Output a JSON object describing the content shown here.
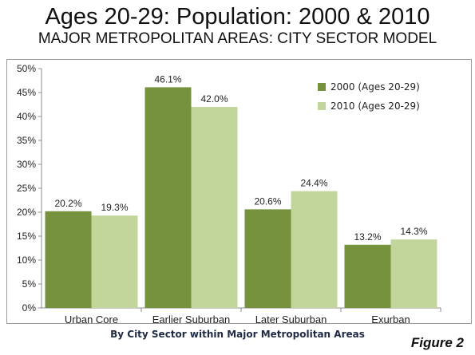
{
  "title": "Ages 20-29: Population: 2000 & 2010",
  "subtitle": "MAJOR METROPOLITAN AREAS: CITY SECTOR MODEL",
  "figure_label": "Figure 2",
  "colors": {
    "series_2000": "#76923c",
    "series_2010": "#c2d69b"
  },
  "chart_data": {
    "type": "bar",
    "xlabel": "By City Sector within Major Metropolitan Areas",
    "ylabel": "",
    "ylim": [
      0,
      50
    ],
    "yticks": [
      "0%",
      "5%",
      "10%",
      "15%",
      "20%",
      "25%",
      "30%",
      "35%",
      "40%",
      "45%",
      "50%"
    ],
    "categories": [
      "Urban Core",
      "Earlier Suburban",
      "Later Suburban",
      "Exurban"
    ],
    "legend_position": "top-right",
    "grid": false,
    "series": [
      {
        "name": "2000 (Ages 20-29)",
        "values": [
          20.2,
          46.1,
          20.6,
          13.2
        ],
        "labels": [
          "20.2%",
          "46.1%",
          "20.6%",
          "13.2%"
        ]
      },
      {
        "name": "2010 (Ages 20-29)",
        "values": [
          19.3,
          42.0,
          24.4,
          14.3
        ],
        "labels": [
          "19.3%",
          "42.0%",
          "24.4%",
          "14.3%"
        ]
      }
    ]
  }
}
